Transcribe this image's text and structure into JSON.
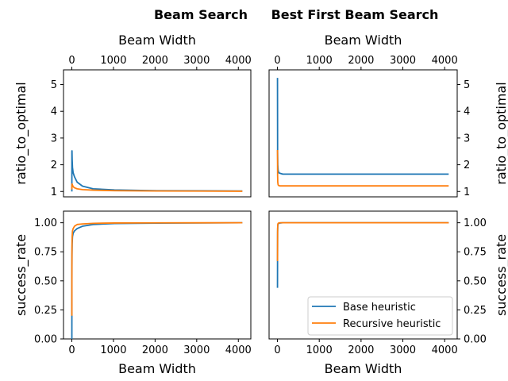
{
  "figure": {
    "titles": [
      "Beam Search",
      "Best First Beam Search"
    ]
  },
  "colors": {
    "base": "#1f77b4",
    "recursive": "#ff7f0e"
  },
  "chart_data": [
    {
      "type": "line",
      "title": "Beam Search",
      "xlabel": "Beam Width",
      "ylabel": "ratio_to_optimal",
      "xlim": [
        -200,
        4300
      ],
      "ylim": [
        0.8,
        5.55
      ],
      "xticks": [
        0,
        1000,
        2000,
        3000,
        4000
      ],
      "yticks": [
        1,
        2,
        3,
        4,
        5
      ],
      "series": [
        {
          "name": "Base heuristic",
          "x": [
            1,
            2,
            4,
            8,
            16,
            32,
            64,
            128,
            256,
            512,
            1024,
            2048,
            4096
          ],
          "y": [
            1.0,
            2.5,
            2.52,
            2.2,
            1.9,
            1.7,
            1.55,
            1.35,
            1.2,
            1.1,
            1.06,
            1.03,
            1.02
          ]
        },
        {
          "name": "Recursive heuristic",
          "x": [
            1,
            2,
            4,
            8,
            16,
            32,
            64,
            128,
            256,
            512,
            1024,
            2048,
            4096
          ],
          "y": [
            1.08,
            1.2,
            1.25,
            1.28,
            1.24,
            1.18,
            1.14,
            1.1,
            1.07,
            1.05,
            1.03,
            1.02,
            1.01
          ]
        }
      ]
    },
    {
      "type": "line",
      "title": "Best First Beam Search",
      "xlabel": "Beam Width",
      "ylabel": "ratio_to_optimal",
      "xlim": [
        -200,
        4300
      ],
      "ylim": [
        0.8,
        5.55
      ],
      "xticks": [
        0,
        1000,
        2000,
        3000,
        4000
      ],
      "yticks": [
        1,
        2,
        3,
        4,
        5
      ],
      "series": [
        {
          "name": "Base heuristic",
          "x": [
            1,
            4,
            8,
            16,
            32,
            64,
            128,
            256,
            512,
            1024,
            2048,
            4096
          ],
          "y": [
            5.25,
            2.5,
            2.0,
            1.8,
            1.7,
            1.68,
            1.65,
            1.65,
            1.65,
            1.65,
            1.65,
            1.65
          ]
        },
        {
          "name": "Recursive heuristic",
          "x": [
            1,
            4,
            8,
            16,
            32,
            64,
            128,
            256,
            512,
            1024,
            2048,
            4096
          ],
          "y": [
            2.55,
            1.6,
            1.35,
            1.25,
            1.22,
            1.21,
            1.21,
            1.21,
            1.21,
            1.21,
            1.21,
            1.21
          ]
        }
      ]
    },
    {
      "type": "line",
      "xlabel": "Beam Width",
      "ylabel": "success_rate",
      "xlim": [
        -200,
        4300
      ],
      "ylim": [
        0,
        1.1
      ],
      "xticks": [
        0,
        1000,
        2000,
        3000,
        4000
      ],
      "yticks": [
        0.0,
        0.25,
        0.5,
        0.75,
        1.0
      ],
      "yticklabels": [
        "0.00",
        "0.25",
        "0.50",
        "0.75",
        "1.00"
      ],
      "series": [
        {
          "name": "Base heuristic",
          "x": [
            1,
            2,
            4,
            8,
            16,
            32,
            64,
            128,
            256,
            512,
            1024,
            2048,
            4096
          ],
          "y": [
            0.0,
            0.45,
            0.72,
            0.82,
            0.88,
            0.91,
            0.93,
            0.95,
            0.97,
            0.985,
            0.993,
            0.997,
            1.0
          ]
        },
        {
          "name": "Recursive heuristic",
          "x": [
            1,
            2,
            4,
            8,
            16,
            32,
            64,
            128,
            256,
            512,
            1024,
            2048,
            4096
          ],
          "y": [
            0.2,
            0.6,
            0.8,
            0.88,
            0.93,
            0.95,
            0.97,
            0.985,
            0.99,
            0.995,
            0.998,
            0.999,
            1.0
          ]
        }
      ]
    },
    {
      "type": "line",
      "xlabel": "Beam Width",
      "ylabel": "success_rate",
      "xlim": [
        -200,
        4300
      ],
      "ylim": [
        0,
        1.1
      ],
      "xticks": [
        0,
        1000,
        2000,
        3000,
        4000
      ],
      "yticks": [
        0.0,
        0.25,
        0.5,
        0.75,
        1.0
      ],
      "yticklabels": [
        "0.00",
        "0.25",
        "0.50",
        "0.75",
        "1.00"
      ],
      "legend": {
        "placement": "lower-right",
        "entries": [
          "Base heuristic",
          "Recursive heuristic"
        ]
      },
      "series": [
        {
          "name": "Base heuristic",
          "x": [
            1,
            4,
            8,
            16,
            32,
            64,
            128,
            256,
            512,
            1024,
            2048,
            4096
          ],
          "y": [
            0.44,
            0.92,
            0.97,
            0.99,
            0.995,
            0.998,
            1.0,
            1.0,
            1.0,
            1.0,
            1.0,
            1.0
          ]
        },
        {
          "name": "Recursive heuristic",
          "x": [
            1,
            4,
            8,
            16,
            32,
            64,
            128,
            256,
            512,
            1024,
            2048,
            4096
          ],
          "y": [
            0.67,
            0.95,
            0.985,
            0.995,
            0.998,
            1.0,
            1.0,
            1.0,
            1.0,
            1.0,
            1.0,
            1.0
          ]
        }
      ]
    }
  ]
}
